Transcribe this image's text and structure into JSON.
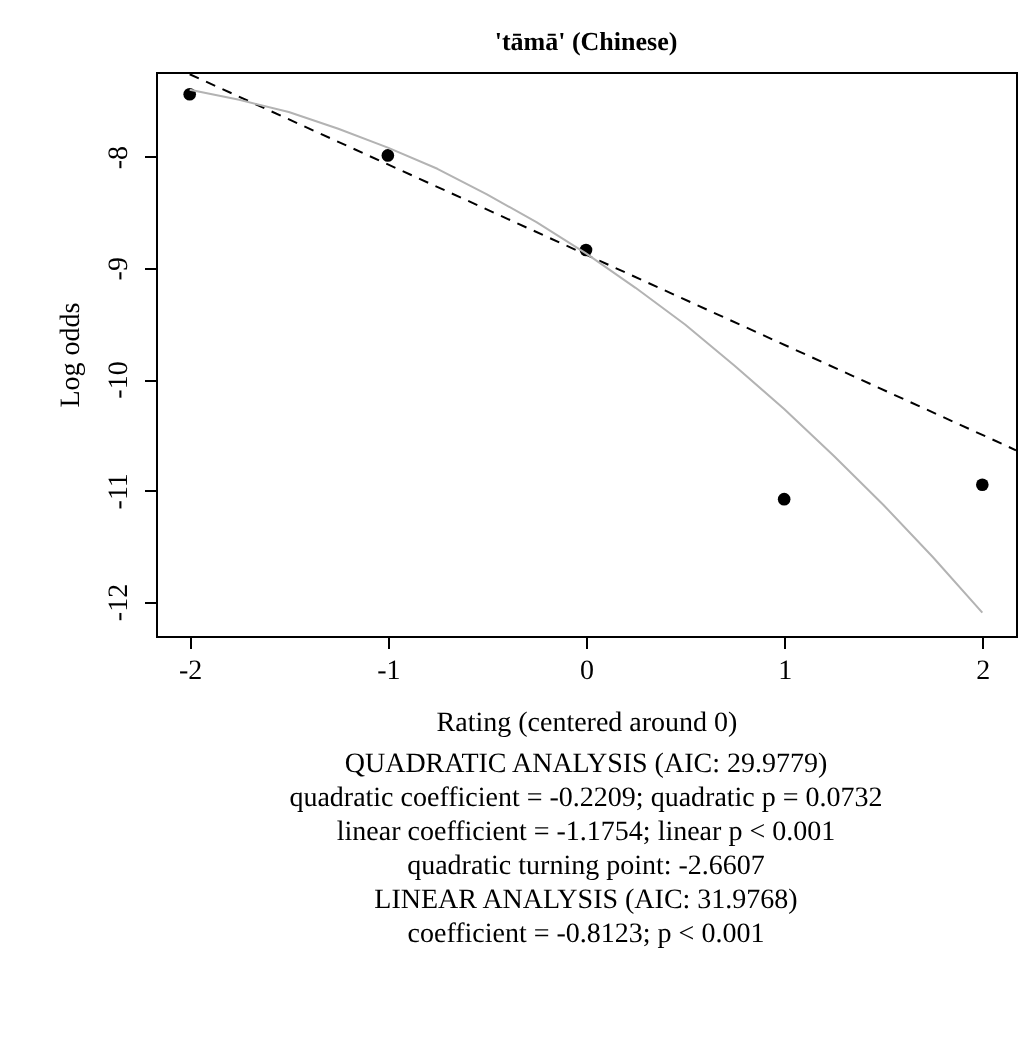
{
  "chart_data": {
    "type": "scatter",
    "title": "'tāmā' (Chinese)",
    "xlabel": "Rating (centered around 0)",
    "ylabel": "Log odds",
    "xlim": [
      -2.17,
      2.17
    ],
    "xticks": [
      -2,
      -1,
      0,
      1,
      2
    ],
    "ylim": [
      -12.31,
      -7.24
    ],
    "yticks": [
      -8,
      -9,
      -10,
      -11,
      -12
    ],
    "grid": false,
    "series": [
      {
        "marker": "circle",
        "color": "#000000",
        "x": [
          -2,
          -1,
          0,
          1,
          2
        ],
        "values": [
          -7.44,
          -7.99,
          -8.84,
          -11.08,
          -10.95
        ]
      },
      {
        "type": "line",
        "color": "#000000",
        "line_style": "dashed",
        "x": [
          -2,
          2.17
        ],
        "values": [
          -7.26,
          -10.64
        ]
      },
      {
        "type": "line",
        "color": "#b3b3b3",
        "line_style": "solid",
        "x": [
          -2,
          -1.75,
          -1.5,
          -1.25,
          -1,
          -0.75,
          -0.5,
          -0.25,
          0,
          0.25,
          0.5,
          0.75,
          1,
          1.25,
          1.5,
          1.75,
          2
        ],
        "values": [
          -7.4,
          -7.49,
          -7.6,
          -7.75,
          -7.92,
          -8.11,
          -8.34,
          -8.59,
          -8.87,
          -9.18,
          -9.51,
          -9.88,
          -10.27,
          -10.69,
          -11.13,
          -11.6,
          -12.1
        ]
      }
    ],
    "annotations": [
      "QUADRATIC ANALYSIS (AIC: 29.9779)",
      "quadratic coefficient = -0.2209; quadratic p = 0.0732",
      "linear coefficient = -1.1754; linear p < 0.001",
      "quadratic turning point: -2.6607",
      "LINEAR ANALYSIS (AIC: 31.9768)",
      "coefficient = -0.8123; p < 0.001"
    ]
  }
}
